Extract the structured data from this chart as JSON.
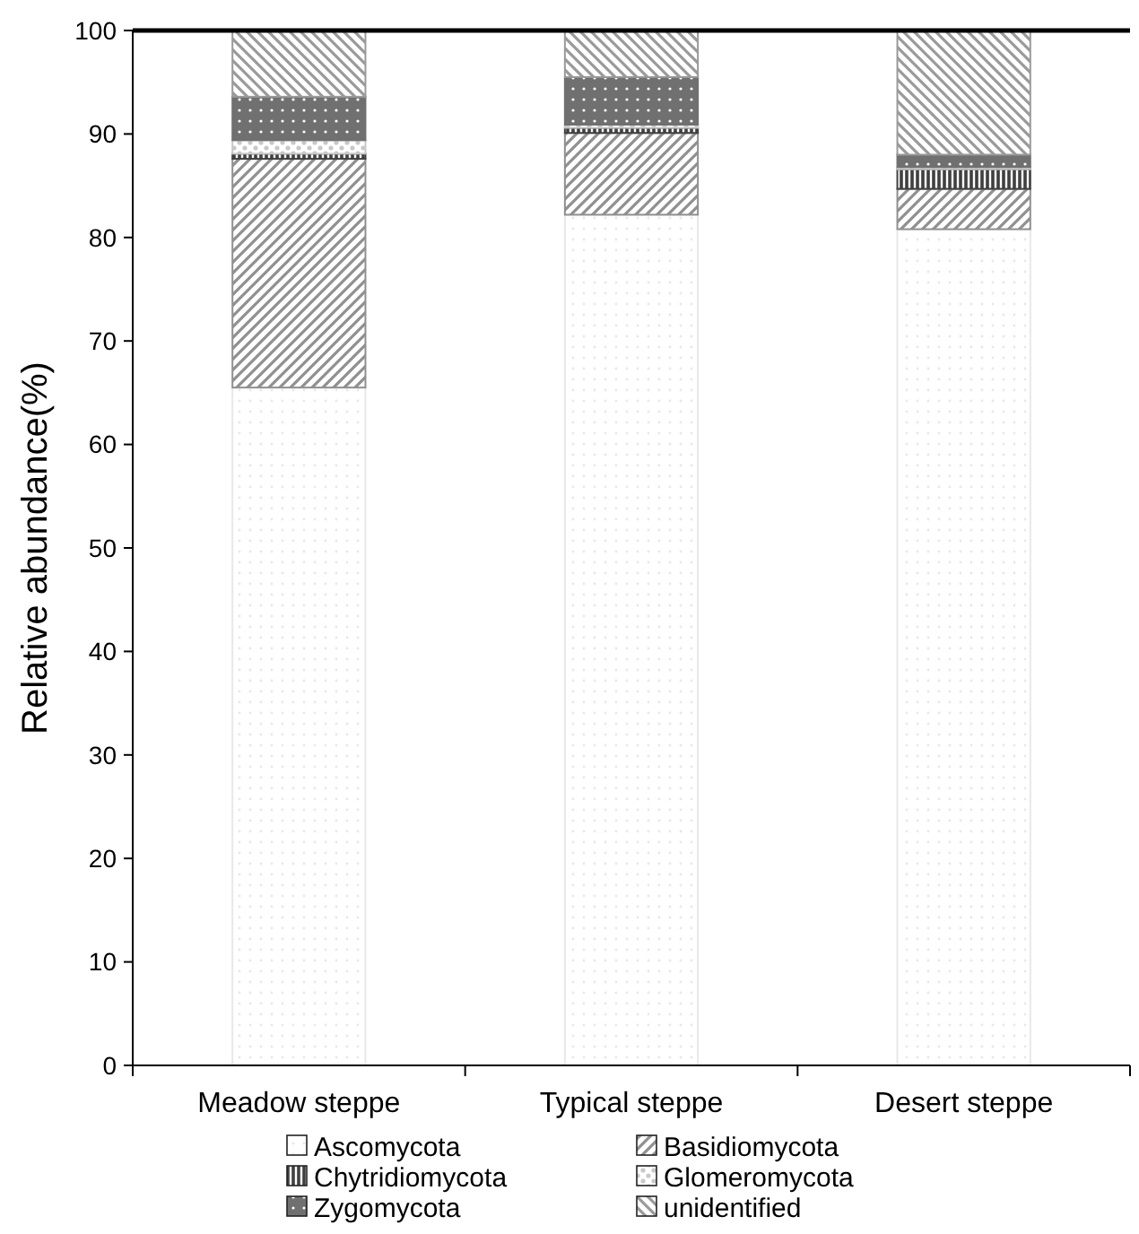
{
  "chart_data": {
    "type": "bar",
    "stacked": true,
    "ylabel": "Relative abundance(%)",
    "categories": [
      "Meadow steppe",
      "Typical steppe",
      "Desert steppe"
    ],
    "ylim": [
      0,
      100
    ],
    "yticks": [
      0,
      10,
      20,
      30,
      40,
      50,
      60,
      70,
      80,
      90,
      100
    ],
    "grid": false,
    "legend": "bottom",
    "series": [
      {
        "name": "Ascomycota",
        "color": "#e8e8e8",
        "values": [
          65.5,
          82.2,
          80.8
        ]
      },
      {
        "name": "Basidiomycota",
        "color": "#909090",
        "values": [
          22.1,
          7.9,
          3.9
        ]
      },
      {
        "name": "Chytridiomycota",
        "color": "#404040",
        "values": [
          0.5,
          0.5,
          1.9
        ]
      },
      {
        "name": "Glomeromycota",
        "color": "#c8c8c8",
        "values": [
          1.3,
          0.3,
          0.2
        ]
      },
      {
        "name": "Zygomycota",
        "color": "#707070",
        "values": [
          4.2,
          4.6,
          1.2
        ]
      },
      {
        "name": "unidentified",
        "color": "#9a9a9a",
        "values": [
          6.4,
          4.5,
          12.0
        ]
      }
    ]
  }
}
